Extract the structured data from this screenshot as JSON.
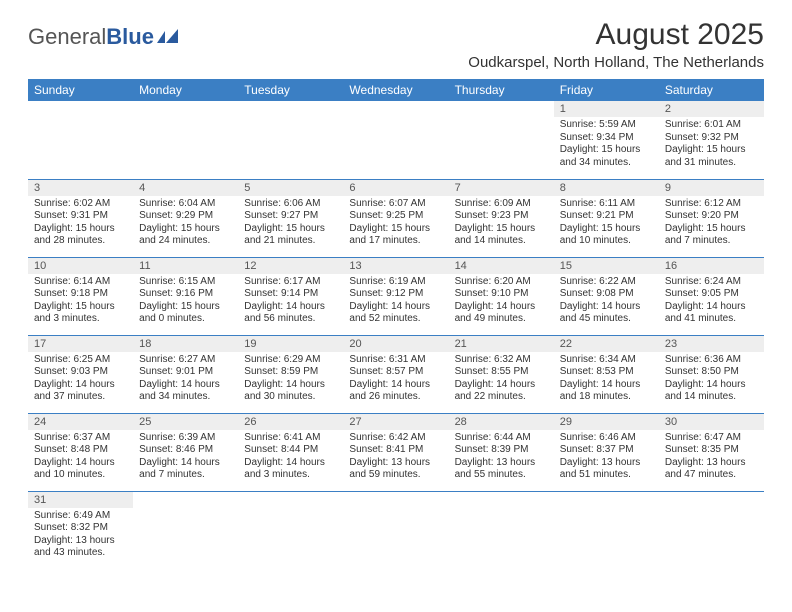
{
  "brand": {
    "part1": "General",
    "part2": "Blue"
  },
  "title": "August 2025",
  "location": "Oudkarspel, North Holland, The Netherlands",
  "colors": {
    "header_bg": "#3b7fc4",
    "header_fg": "#ffffff",
    "daynum_bg": "#eeeeee",
    "rule": "#3b7fc4",
    "brand_blue": "#2a5a9e"
  },
  "weekdays": [
    "Sunday",
    "Monday",
    "Tuesday",
    "Wednesday",
    "Thursday",
    "Friday",
    "Saturday"
  ],
  "weeks": [
    [
      {
        "n": "",
        "sr": "",
        "ss": "",
        "dl": ""
      },
      {
        "n": "",
        "sr": "",
        "ss": "",
        "dl": ""
      },
      {
        "n": "",
        "sr": "",
        "ss": "",
        "dl": ""
      },
      {
        "n": "",
        "sr": "",
        "ss": "",
        "dl": ""
      },
      {
        "n": "",
        "sr": "",
        "ss": "",
        "dl": ""
      },
      {
        "n": "1",
        "sr": "5:59 AM",
        "ss": "9:34 PM",
        "dl": "15 hours and 34 minutes."
      },
      {
        "n": "2",
        "sr": "6:01 AM",
        "ss": "9:32 PM",
        "dl": "15 hours and 31 minutes."
      }
    ],
    [
      {
        "n": "3",
        "sr": "6:02 AM",
        "ss": "9:31 PM",
        "dl": "15 hours and 28 minutes."
      },
      {
        "n": "4",
        "sr": "6:04 AM",
        "ss": "9:29 PM",
        "dl": "15 hours and 24 minutes."
      },
      {
        "n": "5",
        "sr": "6:06 AM",
        "ss": "9:27 PM",
        "dl": "15 hours and 21 minutes."
      },
      {
        "n": "6",
        "sr": "6:07 AM",
        "ss": "9:25 PM",
        "dl": "15 hours and 17 minutes."
      },
      {
        "n": "7",
        "sr": "6:09 AM",
        "ss": "9:23 PM",
        "dl": "15 hours and 14 minutes."
      },
      {
        "n": "8",
        "sr": "6:11 AM",
        "ss": "9:21 PM",
        "dl": "15 hours and 10 minutes."
      },
      {
        "n": "9",
        "sr": "6:12 AM",
        "ss": "9:20 PM",
        "dl": "15 hours and 7 minutes."
      }
    ],
    [
      {
        "n": "10",
        "sr": "6:14 AM",
        "ss": "9:18 PM",
        "dl": "15 hours and 3 minutes."
      },
      {
        "n": "11",
        "sr": "6:15 AM",
        "ss": "9:16 PM",
        "dl": "15 hours and 0 minutes."
      },
      {
        "n": "12",
        "sr": "6:17 AM",
        "ss": "9:14 PM",
        "dl": "14 hours and 56 minutes."
      },
      {
        "n": "13",
        "sr": "6:19 AM",
        "ss": "9:12 PM",
        "dl": "14 hours and 52 minutes."
      },
      {
        "n": "14",
        "sr": "6:20 AM",
        "ss": "9:10 PM",
        "dl": "14 hours and 49 minutes."
      },
      {
        "n": "15",
        "sr": "6:22 AM",
        "ss": "9:08 PM",
        "dl": "14 hours and 45 minutes."
      },
      {
        "n": "16",
        "sr": "6:24 AM",
        "ss": "9:05 PM",
        "dl": "14 hours and 41 minutes."
      }
    ],
    [
      {
        "n": "17",
        "sr": "6:25 AM",
        "ss": "9:03 PM",
        "dl": "14 hours and 37 minutes."
      },
      {
        "n": "18",
        "sr": "6:27 AM",
        "ss": "9:01 PM",
        "dl": "14 hours and 34 minutes."
      },
      {
        "n": "19",
        "sr": "6:29 AM",
        "ss": "8:59 PM",
        "dl": "14 hours and 30 minutes."
      },
      {
        "n": "20",
        "sr": "6:31 AM",
        "ss": "8:57 PM",
        "dl": "14 hours and 26 minutes."
      },
      {
        "n": "21",
        "sr": "6:32 AM",
        "ss": "8:55 PM",
        "dl": "14 hours and 22 minutes."
      },
      {
        "n": "22",
        "sr": "6:34 AM",
        "ss": "8:53 PM",
        "dl": "14 hours and 18 minutes."
      },
      {
        "n": "23",
        "sr": "6:36 AM",
        "ss": "8:50 PM",
        "dl": "14 hours and 14 minutes."
      }
    ],
    [
      {
        "n": "24",
        "sr": "6:37 AM",
        "ss": "8:48 PM",
        "dl": "14 hours and 10 minutes."
      },
      {
        "n": "25",
        "sr": "6:39 AM",
        "ss": "8:46 PM",
        "dl": "14 hours and 7 minutes."
      },
      {
        "n": "26",
        "sr": "6:41 AM",
        "ss": "8:44 PM",
        "dl": "14 hours and 3 minutes."
      },
      {
        "n": "27",
        "sr": "6:42 AM",
        "ss": "8:41 PM",
        "dl": "13 hours and 59 minutes."
      },
      {
        "n": "28",
        "sr": "6:44 AM",
        "ss": "8:39 PM",
        "dl": "13 hours and 55 minutes."
      },
      {
        "n": "29",
        "sr": "6:46 AM",
        "ss": "8:37 PM",
        "dl": "13 hours and 51 minutes."
      },
      {
        "n": "30",
        "sr": "6:47 AM",
        "ss": "8:35 PM",
        "dl": "13 hours and 47 minutes."
      }
    ],
    [
      {
        "n": "31",
        "sr": "6:49 AM",
        "ss": "8:32 PM",
        "dl": "13 hours and 43 minutes."
      },
      {
        "n": "",
        "sr": "",
        "ss": "",
        "dl": ""
      },
      {
        "n": "",
        "sr": "",
        "ss": "",
        "dl": ""
      },
      {
        "n": "",
        "sr": "",
        "ss": "",
        "dl": ""
      },
      {
        "n": "",
        "sr": "",
        "ss": "",
        "dl": ""
      },
      {
        "n": "",
        "sr": "",
        "ss": "",
        "dl": ""
      },
      {
        "n": "",
        "sr": "",
        "ss": "",
        "dl": ""
      }
    ]
  ]
}
